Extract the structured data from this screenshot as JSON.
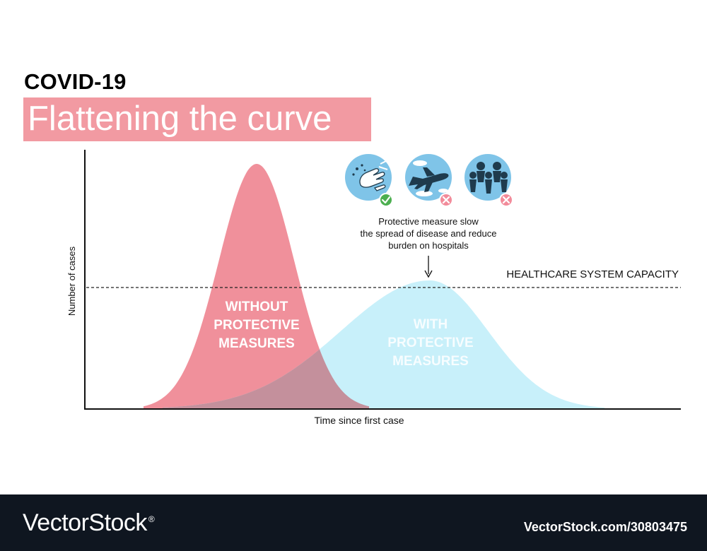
{
  "header": {
    "kicker": "COVID-19",
    "title": "Flattening the curve"
  },
  "colors": {
    "without_curve": "#f0909b",
    "with_curve": "#c8f0fa",
    "overlap": "#c4909c",
    "title_bg": "#f29aa2",
    "icon_circle": "#7fc4e8",
    "icon_dark": "#1f3b4d",
    "check": "#4caf50",
    "cross": "#f28b9a",
    "footer_bg": "#0f1620"
  },
  "diagram": {
    "ylabel": "Number of cases",
    "xlabel": "Time since first case",
    "capacity_label": "HEALTHCARE SYSTEM CAPACITY",
    "without_label": [
      "WITHOUT",
      "PROTECTIVE",
      "MEASURES"
    ],
    "with_label": [
      "WITH",
      "PROTECTIVE",
      "MEASURES"
    ],
    "annotation": [
      "Protective measure slow",
      "the spread of disease and reduce",
      "burden on hospitals"
    ],
    "icons": [
      {
        "name": "hand-washing-icon",
        "status": "allowed"
      },
      {
        "name": "airplane-icon",
        "status": "not-allowed"
      },
      {
        "name": "crowd-icon",
        "status": "not-allowed"
      }
    ]
  },
  "footer": {
    "brand": "VectorStock",
    "reg": "®",
    "id": "VectorStock.com/30803475"
  }
}
